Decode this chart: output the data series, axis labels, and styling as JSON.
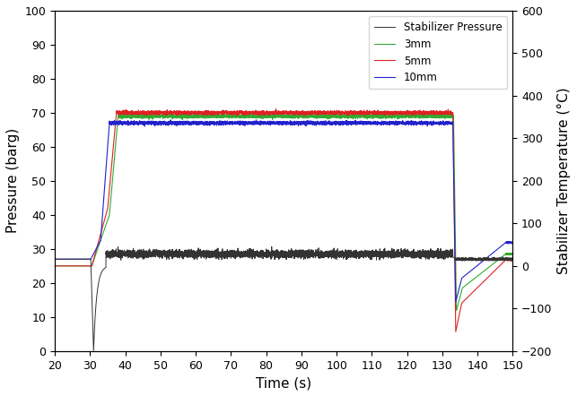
{
  "xlim": [
    20,
    150
  ],
  "ylim_left": [
    0,
    100
  ],
  "ylim_right": [
    -200,
    600
  ],
  "xlabel": "Time (s)",
  "ylabel_left": "Pressure (barg)",
  "ylabel_right": "Stabilizer Temperature (°C)",
  "xticks": [
    20,
    30,
    40,
    50,
    60,
    70,
    80,
    90,
    100,
    110,
    120,
    130,
    140,
    150
  ],
  "yticks_left": [
    0,
    10,
    20,
    30,
    40,
    50,
    60,
    70,
    80,
    90,
    100
  ],
  "yticks_right": [
    -200,
    -100,
    0,
    100,
    200,
    300,
    400,
    500,
    600
  ],
  "legend_entries": [
    "Stabilizer Pressure",
    "3mm",
    "5mm",
    "10mm"
  ],
  "colors": [
    "#aaaaaa",
    "#33aa33",
    "#dd2222",
    "#2222cc"
  ],
  "pressure_color": "#333333",
  "figsize": [
    6.43,
    4.42
  ],
  "dpi": 100,
  "noise_seed": 42
}
